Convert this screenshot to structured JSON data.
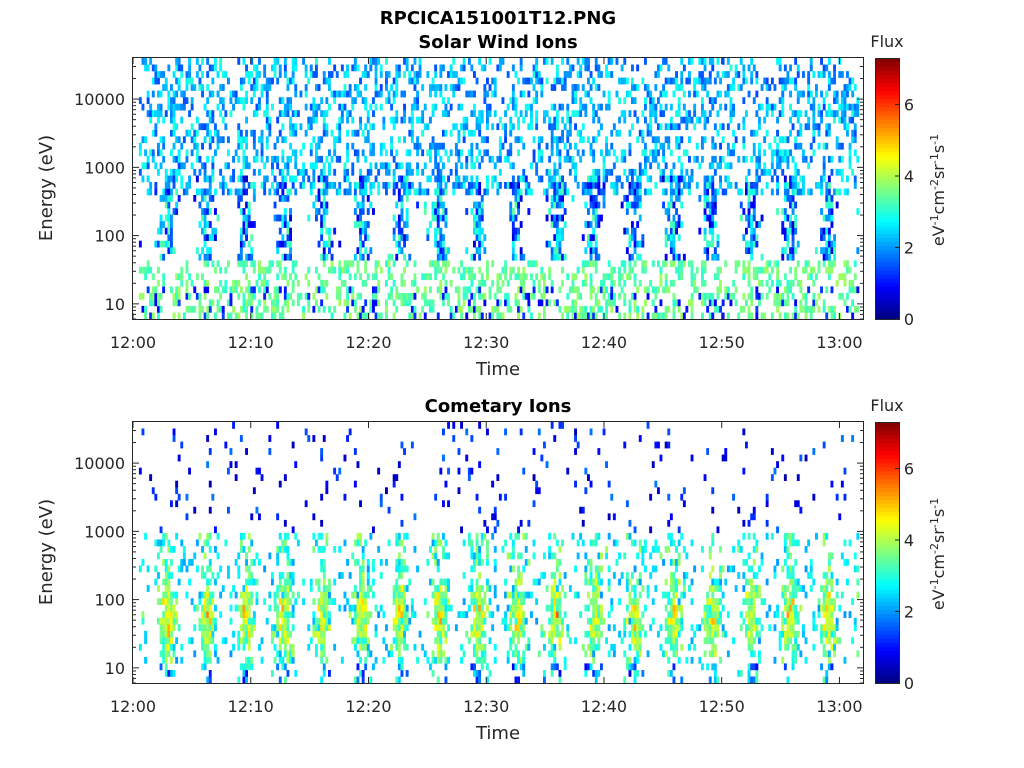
{
  "page": {
    "filename_title": "RPCICA151001T12.PNG"
  },
  "chart_data": [
    {
      "type": "heatmap",
      "title": "Solar Wind Ions",
      "xlabel": "Time",
      "ylabel": "Energy (eV)",
      "x_ticks": [
        "12:00",
        "12:10",
        "12:20",
        "12:30",
        "12:40",
        "12:50",
        "13:00"
      ],
      "x_tick_values_min": [
        0,
        10,
        20,
        30,
        40,
        50,
        60
      ],
      "xlim_min": [
        0,
        62
      ],
      "data_x_range_min": [
        0.5,
        61.5
      ],
      "y_ticks": [
        "10",
        "100",
        "1000",
        "10000"
      ],
      "y_tick_values": [
        10,
        100,
        1000,
        10000
      ],
      "ylim": [
        6,
        40000
      ],
      "yscale": "log",
      "colorbar": {
        "label_top": "Flux",
        "label_side": "eV-1 cm-2 sr-1 s-1",
        "ticks": [
          "0",
          "2",
          "4",
          "6"
        ],
        "range": [
          0,
          7.3
        ],
        "colormap": "jet"
      },
      "pattern": {
        "periodic_bursts": true,
        "burst_period_min": 3.3,
        "burst_energy_range_eV": [
          30,
          700
        ],
        "burst_flux_typical": [
          1,
          3.5
        ],
        "background_flux_typical": [
          1.5,
          3
        ],
        "background_energy_range_eV": [
          400,
          30000
        ],
        "low_energy_streaks_eV": [
          6,
          40
        ],
        "low_energy_flux_typical": [
          3,
          4
        ],
        "peak_flux": 3.5
      }
    },
    {
      "type": "heatmap",
      "title": "Cometary Ions",
      "xlabel": "Time",
      "ylabel": "Energy (eV)",
      "x_ticks": [
        "12:00",
        "12:10",
        "12:20",
        "12:30",
        "12:40",
        "12:50",
        "13:00"
      ],
      "x_tick_values_min": [
        0,
        10,
        20,
        30,
        40,
        50,
        60
      ],
      "xlim_min": [
        0,
        62
      ],
      "data_x_range_min": [
        0.5,
        61.5
      ],
      "y_ticks": [
        "10",
        "100",
        "1000",
        "10000"
      ],
      "y_tick_values": [
        10,
        100,
        1000,
        10000
      ],
      "ylim": [
        6,
        40000
      ],
      "yscale": "log",
      "colorbar": {
        "label_top": "Flux",
        "label_side": "eV-1 cm-2 sr-1 s-1",
        "ticks": [
          "0",
          "2",
          "4",
          "6"
        ],
        "range": [
          0,
          7.3
        ],
        "colormap": "jet"
      },
      "pattern": {
        "periodic_bursts": true,
        "burst_period_min": 3.3,
        "burst_energy_range_eV": [
          10,
          800
        ],
        "burst_core_energy_eV": [
          25,
          120
        ],
        "burst_flux_typical": [
          3,
          5
        ],
        "peak_flux": 6,
        "sparse_background_energy_range_eV": [
          1000,
          15000
        ],
        "sparse_background_flux": [
          0.5,
          1.5
        ]
      }
    }
  ]
}
